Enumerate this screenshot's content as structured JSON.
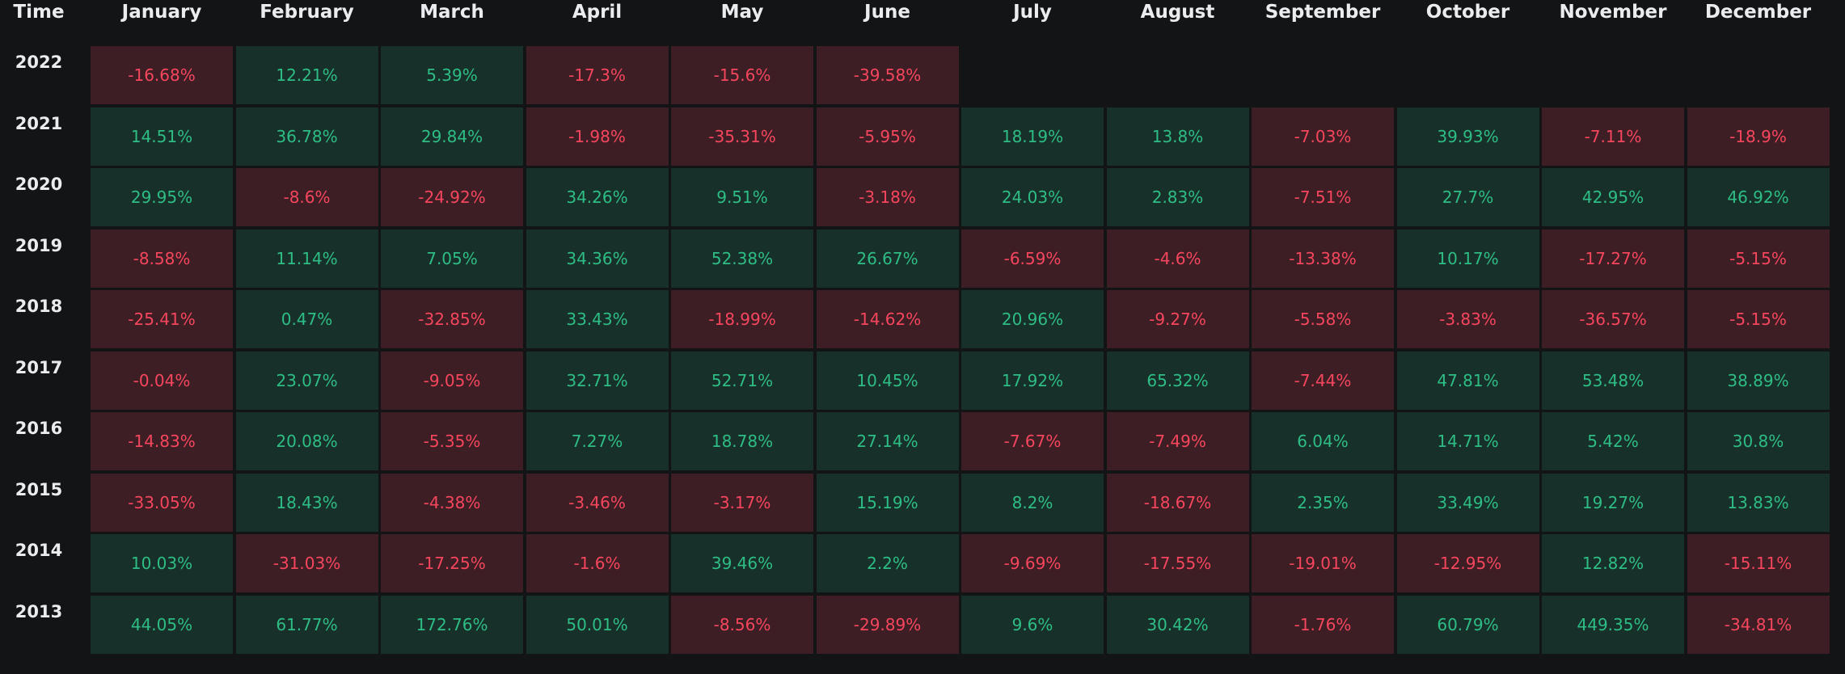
{
  "chart_data": {
    "type": "heatmap",
    "corner_label": "Time",
    "columns": [
      "January",
      "February",
      "March",
      "April",
      "May",
      "June",
      "July",
      "August",
      "September",
      "October",
      "November",
      "December"
    ],
    "rows": [
      {
        "year": "2022",
        "values": [
          "-16.68%",
          "12.21%",
          "5.39%",
          "-17.3%",
          "-15.6%",
          "-39.58%",
          null,
          null,
          null,
          null,
          null,
          null
        ]
      },
      {
        "year": "2021",
        "values": [
          "14.51%",
          "36.78%",
          "29.84%",
          "-1.98%",
          "-35.31%",
          "-5.95%",
          "18.19%",
          "13.8%",
          "-7.03%",
          "39.93%",
          "-7.11%",
          "-18.9%"
        ]
      },
      {
        "year": "2020",
        "values": [
          "29.95%",
          "-8.6%",
          "-24.92%",
          "34.26%",
          "9.51%",
          "-3.18%",
          "24.03%",
          "2.83%",
          "-7.51%",
          "27.7%",
          "42.95%",
          "46.92%"
        ]
      },
      {
        "year": "2019",
        "values": [
          "-8.58%",
          "11.14%",
          "7.05%",
          "34.36%",
          "52.38%",
          "26.67%",
          "-6.59%",
          "-4.6%",
          "-13.38%",
          "10.17%",
          "-17.27%",
          "-5.15%"
        ]
      },
      {
        "year": "2018",
        "values": [
          "-25.41%",
          "0.47%",
          "-32.85%",
          "33.43%",
          "-18.99%",
          "-14.62%",
          "20.96%",
          "-9.27%",
          "-5.58%",
          "-3.83%",
          "-36.57%",
          "-5.15%"
        ]
      },
      {
        "year": "2017",
        "values": [
          "-0.04%",
          "23.07%",
          "-9.05%",
          "32.71%",
          "52.71%",
          "10.45%",
          "17.92%",
          "65.32%",
          "-7.44%",
          "47.81%",
          "53.48%",
          "38.89%"
        ]
      },
      {
        "year": "2016",
        "values": [
          "-14.83%",
          "20.08%",
          "-5.35%",
          "7.27%",
          "18.78%",
          "27.14%",
          "-7.67%",
          "-7.49%",
          "6.04%",
          "14.71%",
          "5.42%",
          "30.8%"
        ]
      },
      {
        "year": "2015",
        "values": [
          "-33.05%",
          "18.43%",
          "-4.38%",
          "-3.46%",
          "-3.17%",
          "15.19%",
          "8.2%",
          "-18.67%",
          "2.35%",
          "33.49%",
          "19.27%",
          "13.83%"
        ]
      },
      {
        "year": "2014",
        "values": [
          "10.03%",
          "-31.03%",
          "-17.25%",
          "-1.6%",
          "39.46%",
          "2.2%",
          "-9.69%",
          "-17.55%",
          "-19.01%",
          "-12.95%",
          "12.82%",
          "-15.11%"
        ]
      },
      {
        "year": "2013",
        "values": [
          "44.05%",
          "61.77%",
          "172.76%",
          "50.01%",
          "-8.56%",
          "-29.89%",
          "9.6%",
          "30.42%",
          "-1.76%",
          "60.79%",
          "449.35%",
          "-34.81%"
        ]
      }
    ],
    "colors": {
      "background": "#131416",
      "header_text": "#eaecef",
      "positive_fill": "#17312a",
      "positive_text": "#2ebd85",
      "negative_fill": "#3c1e24",
      "negative_text": "#f6465d"
    }
  }
}
